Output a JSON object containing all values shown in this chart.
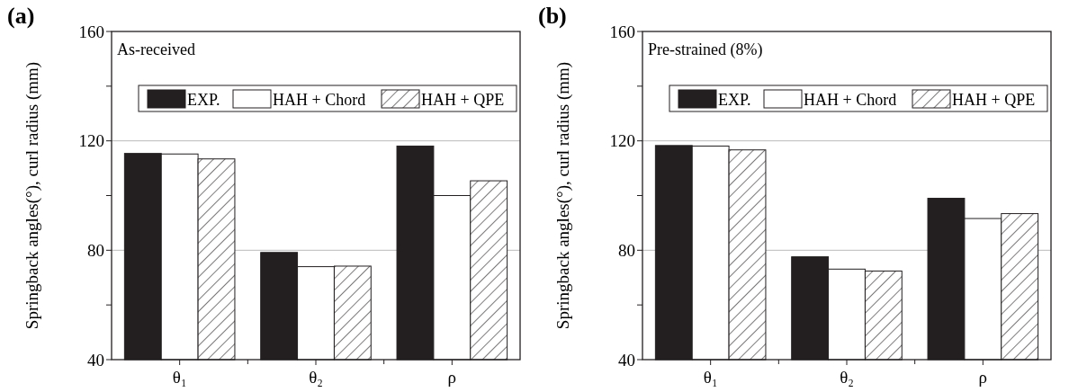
{
  "chart_data": [
    {
      "type": "bar",
      "title": "(a)",
      "subtitle": "As-received",
      "ylabel": "Springback angles(°), curl radius (mm)",
      "categories": [
        "θ₁",
        "θ₂",
        "ρ"
      ],
      "ylim": [
        40,
        160
      ],
      "yticks": [
        40,
        {
          "value": 60,
          "label": null
        },
        80,
        {
          "value": 100,
          "label": null
        },
        120,
        {
          "value": 140,
          "label": null
        },
        160
      ],
      "grid": "y",
      "legend": "top",
      "series": [
        {
          "name": "EXP.",
          "color": "#231f20",
          "values": [
            115.4,
            79.2,
            118.1
          ]
        },
        {
          "name": "HAH + Chord",
          "color": "#ffffff",
          "values": [
            115.2,
            74,
            100
          ]
        },
        {
          "name": "HAH + QPE",
          "color": "#231f20",
          "values": [
            113.4,
            74.2,
            105.4
          ]
        }
      ]
    },
    {
      "type": "bar",
      "title": "(b)",
      "subtitle": "Pre-strained (8%)",
      "ylabel": "Springback angles(°), curl radius (mm)",
      "categories": [
        "θ₁",
        "θ₂",
        "ρ"
      ],
      "ylim": [
        40,
        160
      ],
      "yticks": [
        40,
        {
          "value": 60,
          "label": null
        },
        80,
        {
          "value": 100,
          "label": null
        },
        120,
        {
          "value": 140,
          "label": null
        },
        160
      ],
      "grid": "y",
      "legend": "top",
      "series": [
        {
          "name": "EXP.",
          "color": "#231f20",
          "values": [
            118.3,
            77.6,
            99
          ]
        },
        {
          "name": "HAH + Chord",
          "color": "#ffffff",
          "values": [
            118.1,
            73.1,
            91.6
          ]
        },
        {
          "name": "HAH + QPE",
          "color": "#231f20",
          "values": [
            116.7,
            72.4,
            93.4
          ]
        }
      ]
    }
  ]
}
